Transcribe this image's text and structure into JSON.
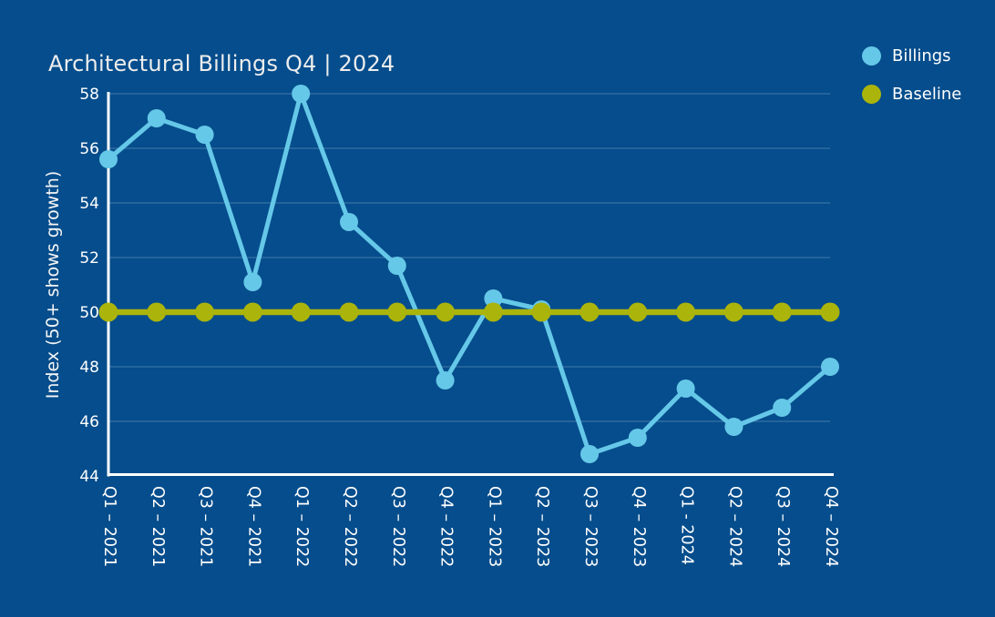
{
  "title": "Architectural Billings Q4 | 2024",
  "legend": {
    "items": [
      {
        "label": "Billings",
        "color": "#66c8e8"
      },
      {
        "label": "Baseline",
        "color": "#abb40a"
      }
    ]
  },
  "colors": {
    "background": "#054d8c",
    "billings": "#66c8e8",
    "baseline": "#abb40a",
    "axis": "#ffffff",
    "title_text": "#ededed",
    "gridline": "rgba(230,242,250,0.28)"
  },
  "chart_data": {
    "type": "line",
    "title": "Architectural Billings Q4 | 2024",
    "xlabel": "",
    "ylabel": "Index (50+ shows growth)",
    "ylim": [
      44,
      58
    ],
    "yticks": [
      44,
      46,
      48,
      50,
      52,
      54,
      56,
      58
    ],
    "grid": true,
    "legend_position": "top-right",
    "categories": [
      "Q1 – 2021",
      "Q2 – 2021",
      "Q3 – 2021",
      "Q4 – 2021",
      "Q1 – 2022",
      "Q2 – 2022",
      "Q3 – 2022",
      "Q4 – 2022",
      "Q1 – 2023",
      "Q2 – 2023",
      "Q3 – 2023",
      "Q4 – 2023",
      "Q1 - 2024",
      "Q2 – 2024",
      "Q3 – 2024",
      "Q4 – 2024"
    ],
    "series": [
      {
        "name": "Billings",
        "color": "#66c8e8",
        "line_width": 5,
        "marker_radius": 10,
        "values": [
          55.6,
          57.1,
          56.5,
          51.1,
          58.0,
          53.3,
          51.7,
          47.5,
          50.5,
          50.1,
          44.8,
          45.4,
          47.2,
          45.8,
          46.5,
          48.0
        ]
      },
      {
        "name": "Baseline",
        "color": "#abb40a",
        "line_width": 6.5,
        "marker_radius": 10.5,
        "values": [
          50,
          50,
          50,
          50,
          50,
          50,
          50,
          50,
          50,
          50,
          50,
          50,
          50,
          50,
          50,
          50
        ]
      }
    ]
  }
}
